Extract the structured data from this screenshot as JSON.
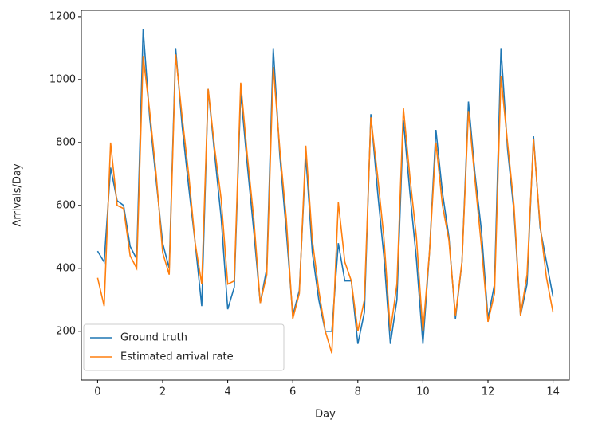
{
  "chart_data": {
    "type": "line",
    "xlabel": "Day",
    "ylabel": "Arrivals/Day",
    "x": [
      0,
      0.2,
      0.4,
      0.6,
      0.8,
      1,
      1.2,
      1.4,
      1.6,
      1.8,
      2,
      2.2,
      2.4,
      2.6,
      2.8,
      3,
      3.2,
      3.4,
      3.6,
      3.8,
      4,
      4.2,
      4.4,
      4.6,
      4.8,
      5,
      5.2,
      5.4,
      5.6,
      5.8,
      6,
      6.2,
      6.4,
      6.6,
      6.8,
      7,
      7.2,
      7.4,
      7.6,
      7.8,
      8,
      8.2,
      8.4,
      8.6,
      8.8,
      9,
      9.2,
      9.4,
      9.6,
      9.8,
      10,
      10.2,
      10.4,
      10.6,
      10.8,
      11,
      11.2,
      11.4,
      11.6,
      11.8,
      12,
      12.2,
      12.4,
      12.6,
      12.8,
      13,
      13.2,
      13.4,
      13.6,
      13.8,
      14
    ],
    "series": [
      {
        "name": "Ground truth",
        "color": "#1f77b4",
        "values": [
          455,
          420,
          720,
          615,
          600,
          470,
          430,
          1160,
          880,
          680,
          480,
          400,
          1100,
          850,
          660,
          480,
          280,
          970,
          760,
          560,
          270,
          340,
          960,
          730,
          520,
          290,
          400,
          1100,
          760,
          520,
          250,
          330,
          760,
          450,
          300,
          200,
          200,
          480,
          360,
          360,
          160,
          260,
          890,
          650,
          440,
          160,
          300,
          870,
          640,
          430,
          160,
          450,
          840,
          640,
          500,
          240,
          420,
          930,
          700,
          520,
          240,
          350,
          1100,
          780,
          580,
          250,
          350,
          820,
          530,
          420,
          310
        ]
      },
      {
        "name": "Estimated arrival rate",
        "color": "#ff7f0e",
        "values": [
          370,
          280,
          800,
          600,
          590,
          440,
          400,
          1075,
          900,
          700,
          450,
          380,
          1080,
          880,
          700,
          480,
          350,
          970,
          780,
          620,
          350,
          360,
          990,
          760,
          560,
          290,
          380,
          1040,
          780,
          560,
          240,
          320,
          790,
          490,
          330,
          200,
          130,
          610,
          420,
          360,
          200,
          300,
          880,
          700,
          500,
          200,
          350,
          910,
          690,
          500,
          200,
          450,
          800,
          600,
          490,
          250,
          420,
          900,
          680,
          470,
          230,
          320,
          1010,
          800,
          600,
          250,
          380,
          810,
          540,
          370,
          260
        ]
      }
    ],
    "xlim": [
      -0.5,
      14.5
    ],
    "xticks": [
      0,
      2,
      4,
      6,
      8,
      10,
      12,
      14
    ],
    "ylim": [
      45,
      1220
    ],
    "yticks": [
      200,
      400,
      600,
      800,
      1000,
      1200
    ],
    "legend": "lower left",
    "grid": false
  }
}
